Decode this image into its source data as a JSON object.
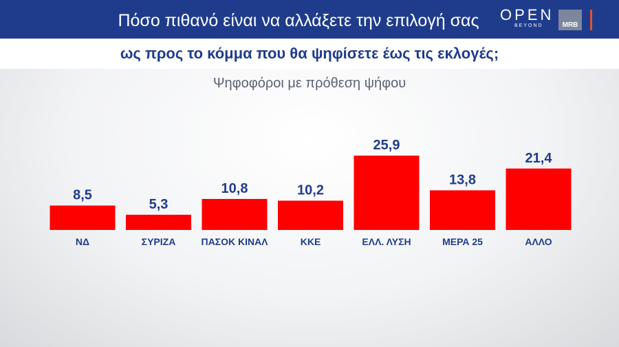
{
  "header": {
    "title": "Πόσο πιθανό είναι να αλλάξετε την επιλογή σας",
    "logo_open": "OPEN",
    "logo_beyond": "BEYOND",
    "logo_mrb": "MRB"
  },
  "subtitle": "ως προς το κόμμα που θα ψηφίσετε έως τις εκλογές;",
  "caption": "Ψηφοφόροι με πρόθεση ψήφου",
  "colors": {
    "header_bg": "#1f3c8c",
    "bar": "#ff0000",
    "text": "#1f3c8c"
  },
  "chart_data": {
    "type": "bar",
    "categories": [
      "ΝΔ",
      "ΣΥΡΙΖΑ",
      "ΠΑΣΟΚ ΚΙΝΑΛ",
      "ΚΚΕ",
      "ΕΛΛ. ΛΥΣΗ",
      "ΜΕΡΑ 25",
      "ΑΛΛΟ"
    ],
    "values": [
      8.5,
      5.3,
      10.8,
      10.2,
      25.9,
      13.8,
      21.4
    ],
    "value_labels": [
      "8,5",
      "5,3",
      "10,8",
      "10,2",
      "25,9",
      "13,8",
      "21,4"
    ],
    "ylim": [
      0,
      25.9
    ],
    "grid": false,
    "title": "",
    "xlabel": "",
    "ylabel": ""
  }
}
